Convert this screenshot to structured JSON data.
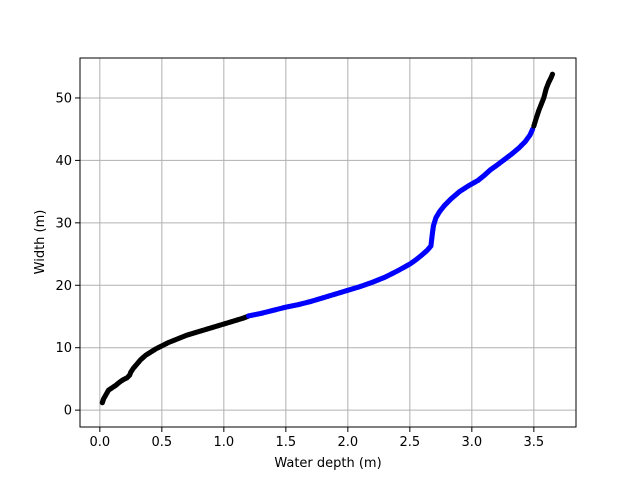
{
  "chart_data": {
    "type": "scatter",
    "title": "",
    "xlabel": "Water depth (m)",
    "ylabel": "Width (m)",
    "xlim": [
      -0.16,
      3.84
    ],
    "ylim": [
      -2.7,
      56.4
    ],
    "xticks": [
      0.0,
      0.5,
      1.0,
      1.5,
      2.0,
      2.5,
      3.0,
      3.5
    ],
    "xtick_labels": [
      "0.0",
      "0.5",
      "1.0",
      "1.5",
      "2.0",
      "2.5",
      "3.0",
      "3.5"
    ],
    "yticks": [
      0,
      10,
      20,
      30,
      40,
      50
    ],
    "ytick_labels": [
      "0",
      "10",
      "20",
      "30",
      "40",
      "50"
    ],
    "grid": true,
    "marker": "circle",
    "series": [
      {
        "color": "#000000",
        "points": [
          [
            0.02,
            1.2
          ],
          [
            0.03,
            1.8
          ],
          [
            0.05,
            2.5
          ],
          [
            0.07,
            3.2
          ],
          [
            0.1,
            3.6
          ],
          [
            0.13,
            4.0
          ],
          [
            0.16,
            4.5
          ],
          [
            0.19,
            4.9
          ],
          [
            0.22,
            5.2
          ],
          [
            0.24,
            5.6
          ],
          [
            0.25,
            6.1
          ],
          [
            0.27,
            6.7
          ],
          [
            0.3,
            7.4
          ],
          [
            0.33,
            8.1
          ],
          [
            0.37,
            8.8
          ],
          [
            0.41,
            9.3
          ],
          [
            0.45,
            9.8
          ],
          [
            0.5,
            10.3
          ],
          [
            0.55,
            10.8
          ],
          [
            0.6,
            11.2
          ],
          [
            0.65,
            11.6
          ],
          [
            0.7,
            12.0
          ],
          [
            0.75,
            12.3
          ],
          [
            0.8,
            12.6
          ],
          [
            0.85,
            12.9
          ],
          [
            0.9,
            13.2
          ],
          [
            0.95,
            13.5
          ],
          [
            1.0,
            13.8
          ],
          [
            1.05,
            14.1
          ],
          [
            1.1,
            14.4
          ],
          [
            1.15,
            14.7
          ],
          [
            1.19,
            15.0
          ]
        ]
      },
      {
        "color": "#0000ff",
        "points": [
          [
            1.2,
            15.1
          ],
          [
            1.3,
            15.5
          ],
          [
            1.4,
            16.0
          ],
          [
            1.5,
            16.5
          ],
          [
            1.6,
            16.9
          ],
          [
            1.7,
            17.4
          ],
          [
            1.8,
            18.0
          ],
          [
            1.9,
            18.6
          ],
          [
            2.0,
            19.2
          ],
          [
            2.1,
            19.8
          ],
          [
            2.2,
            20.5
          ],
          [
            2.3,
            21.3
          ],
          [
            2.4,
            22.3
          ],
          [
            2.5,
            23.4
          ],
          [
            2.55,
            24.1
          ],
          [
            2.6,
            24.9
          ],
          [
            2.64,
            25.6
          ],
          [
            2.67,
            26.3
          ],
          [
            2.68,
            28.0
          ],
          [
            2.69,
            29.5
          ],
          [
            2.71,
            30.8
          ],
          [
            2.74,
            31.8
          ],
          [
            2.78,
            32.8
          ],
          [
            2.83,
            33.8
          ],
          [
            2.9,
            35.0
          ],
          [
            2.97,
            35.9
          ],
          [
            3.05,
            36.8
          ],
          [
            3.1,
            37.6
          ],
          [
            3.15,
            38.5
          ],
          [
            3.2,
            39.2
          ],
          [
            3.26,
            40.1
          ],
          [
            3.32,
            41.0
          ],
          [
            3.38,
            42.0
          ],
          [
            3.43,
            43.0
          ],
          [
            3.47,
            44.1
          ],
          [
            3.49,
            45.0
          ]
        ]
      },
      {
        "color": "#000000",
        "points": [
          [
            3.5,
            45.5
          ],
          [
            3.52,
            46.8
          ],
          [
            3.54,
            48.0
          ],
          [
            3.56,
            49.0
          ],
          [
            3.58,
            50.0
          ],
          [
            3.6,
            51.5
          ],
          [
            3.62,
            52.5
          ],
          [
            3.64,
            53.3
          ],
          [
            3.65,
            53.8
          ]
        ]
      }
    ]
  }
}
